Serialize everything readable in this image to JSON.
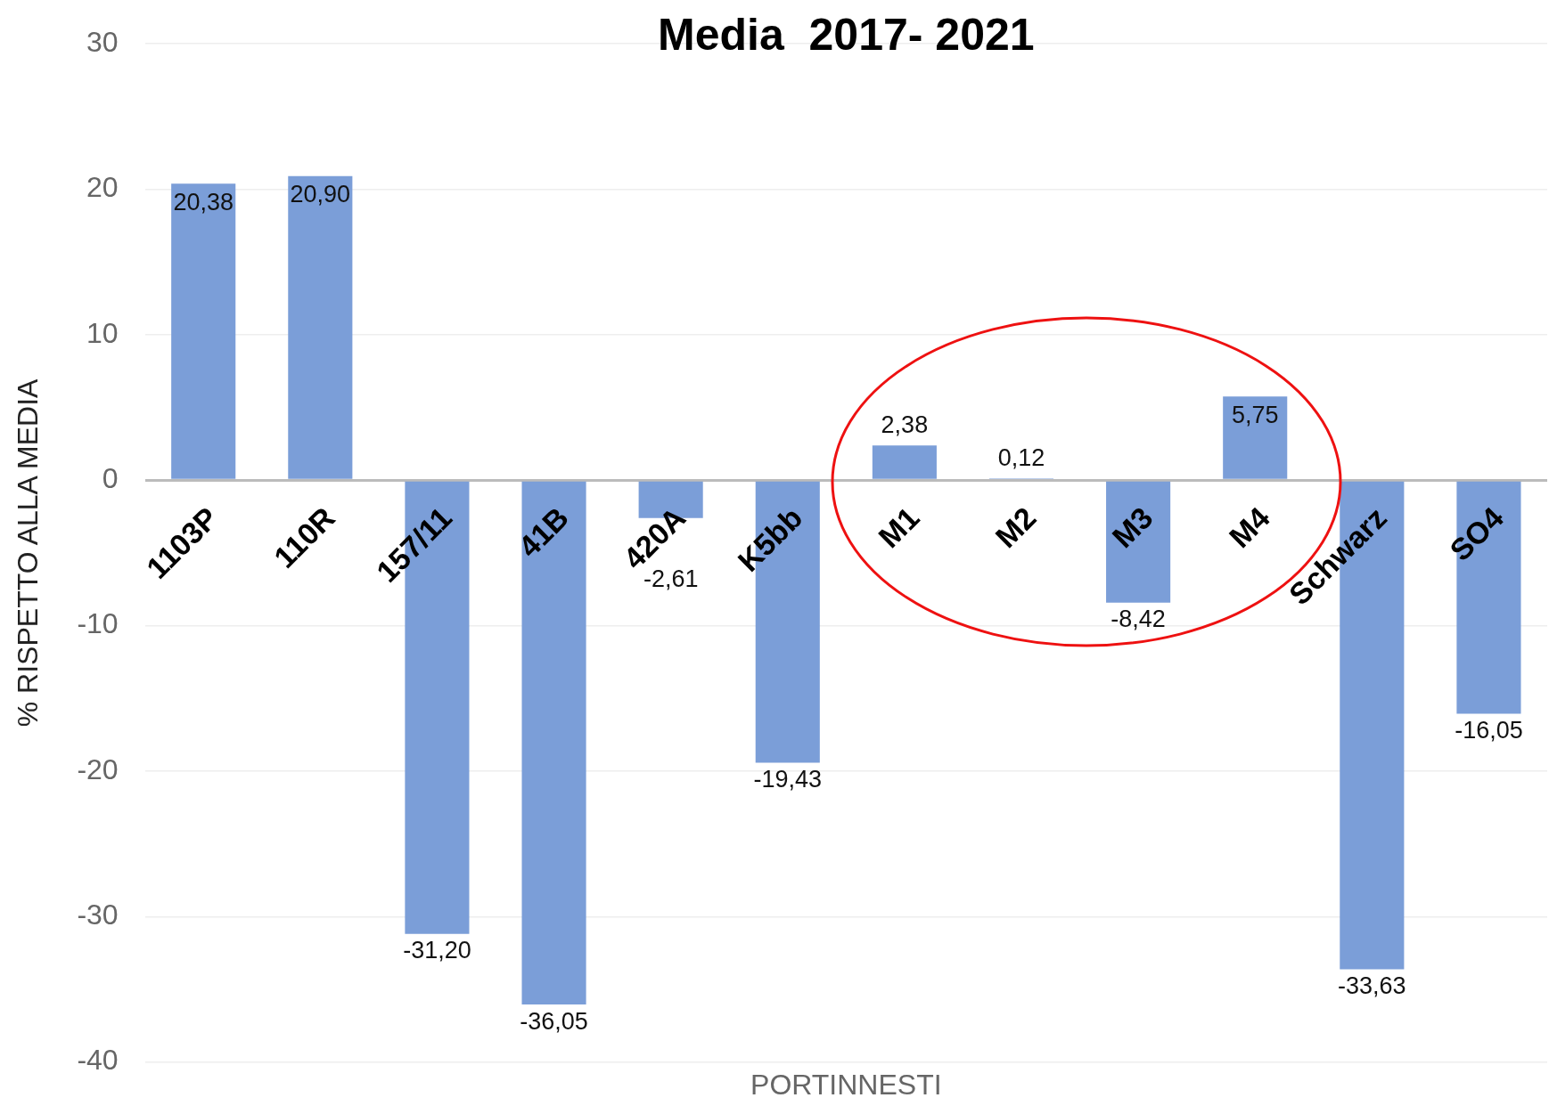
{
  "chart_data": {
    "type": "bar",
    "title": "Media  2017- 2021",
    "xlabel": "PORTINNESTI",
    "ylabel": "% RISPETTO ALLA MEDIA",
    "categories": [
      "1103P",
      "110R",
      "157/11",
      "41B",
      "420A",
      "K5bb",
      "M1",
      "M2",
      "M3",
      "M4",
      "Schwarz",
      "SO4"
    ],
    "values": [
      20.38,
      20.9,
      -31.2,
      -36.05,
      -2.61,
      -19.43,
      2.38,
      0.12,
      -8.42,
      5.75,
      -33.63,
      -16.05
    ],
    "value_labels": [
      "20,38",
      "20,90",
      "-31,20",
      "-36,05",
      "-2,61",
      "-19,43",
      "2,38",
      "0,12",
      "-8,42",
      "5,75",
      "-33,63",
      "-16,05"
    ],
    "color": "#7b9ed8",
    "ylim": [
      -40,
      30
    ],
    "yticks": [
      -40,
      -30,
      -20,
      -10,
      0,
      10,
      20,
      30
    ],
    "grid": "y"
  }
}
